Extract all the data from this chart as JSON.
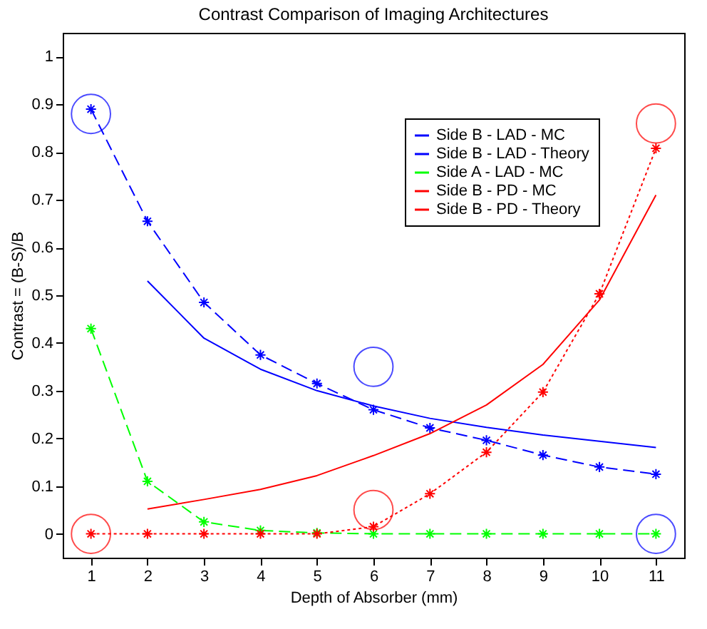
{
  "chart_data": {
    "type": "line",
    "title": "Contrast Comparison of Imaging Architectures",
    "xlabel": "Depth of Absorber (mm)",
    "ylabel": "Contrast = (B-S)/B",
    "x": [
      1,
      2,
      3,
      4,
      5,
      6,
      7,
      8,
      9,
      10,
      11
    ],
    "xlim": [
      0.5,
      11.5
    ],
    "xticks": [
      1,
      2,
      3,
      4,
      5,
      6,
      7,
      8,
      9,
      10,
      11
    ],
    "ylim": [
      -0.05,
      1.05
    ],
    "yticks": [
      0,
      0.1,
      0.2,
      0.3,
      0.4,
      0.5,
      0.6,
      0.7,
      0.8,
      0.9,
      1
    ],
    "grid": false,
    "legend": "top right",
    "series": [
      {
        "name": "Side B - LAD - MC",
        "color": "#0000ff",
        "marker": "cross",
        "line_style": "dashed",
        "values": [
          0.89,
          0.655,
          0.485,
          0.375,
          0.315,
          0.26,
          0.222,
          0.196,
          0.165,
          0.14,
          0.125
        ]
      },
      {
        "name": "Side B - LAD - Theory",
        "color": "#0000ff",
        "marker": "none",
        "line_style": "solid",
        "values": [
          null,
          0.53,
          0.41,
          0.345,
          0.3,
          0.268,
          0.242,
          0.223,
          0.207,
          0.194,
          0.181
        ]
      },
      {
        "name": "Side A - LAD - MC",
        "color": "#00ff00",
        "marker": "cross",
        "line_style": "dashed",
        "values": [
          0.43,
          0.11,
          0.025,
          0.007,
          0.002,
          0,
          0,
          0,
          0,
          0,
          0
        ]
      },
      {
        "name": "Side B - PD - MC",
        "color": "#ff0000",
        "marker": "cross",
        "line_style": "dotted",
        "values": [
          0,
          0,
          0,
          0,
          0,
          0.015,
          0.084,
          0.171,
          0.297,
          0.503,
          0.808
        ]
      },
      {
        "name": "Side B - PD - Theory",
        "color": "#ff0000",
        "marker": "none",
        "line_style": "solid",
        "values": [
          null,
          0.052,
          0.072,
          0.093,
          0.122,
          0.164,
          0.21,
          0.27,
          0.355,
          0.49,
          0.71
        ]
      },
      {
        "type": "scatter",
        "color": "#0000ff",
        "marker": "circle",
        "x": [
          1,
          6,
          11
        ],
        "values": [
          0.88,
          0.35,
          0
        ]
      },
      {
        "type": "scatter",
        "color": "#ff0000",
        "marker": "circle",
        "x": [
          1,
          6,
          11
        ],
        "values": [
          0,
          0.05,
          0.86
        ]
      }
    ]
  }
}
